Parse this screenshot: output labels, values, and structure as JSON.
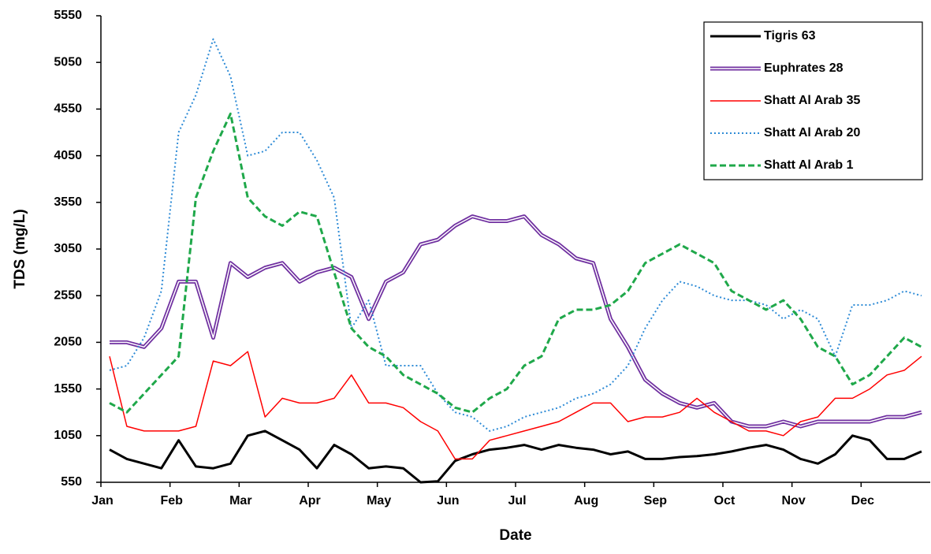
{
  "chart_data": {
    "type": "line",
    "xlabel": "Date",
    "ylabel": "TDS (mg/L)",
    "categories": [
      "Jan",
      null,
      null,
      null,
      "Feb",
      null,
      null,
      null,
      "Mar",
      null,
      null,
      null,
      "Apr",
      null,
      null,
      null,
      "May",
      null,
      null,
      null,
      "Jun",
      null,
      null,
      null,
      "Jul",
      null,
      null,
      null,
      "Aug",
      null,
      null,
      null,
      "Sep",
      null,
      null,
      null,
      "Oct",
      null,
      null,
      null,
      "Nov",
      null,
      null,
      null,
      "Dec",
      null,
      null,
      null
    ],
    "ylim": [
      550,
      5550
    ],
    "yticks": [
      550,
      1050,
      1550,
      2050,
      2550,
      3050,
      3550,
      4050,
      4550,
      5050,
      5550
    ],
    "legend": "upper right",
    "series": [
      {
        "name": "Tigris 63",
        "color": "#000000",
        "linestyle": "solid",
        "values": [
          900,
          800,
          750,
          700,
          1000,
          720,
          700,
          750,
          1050,
          1100,
          1000,
          900,
          700,
          950,
          850,
          700,
          720,
          700,
          550,
          560,
          780,
          850,
          900,
          920,
          950,
          900,
          950,
          920,
          900,
          850,
          880,
          800,
          800,
          820,
          830,
          850,
          880,
          920,
          950,
          900,
          800,
          750,
          850,
          1050,
          1000,
          800,
          800,
          880
        ]
      },
      {
        "name": "Euphrates 28",
        "color": "#7030a0",
        "linestyle": "double",
        "values": [
          2050,
          2050,
          2000,
          2200,
          2700,
          2700,
          2100,
          2900,
          2750,
          2850,
          2900,
          2700,
          2800,
          2850,
          2750,
          2300,
          2700,
          2800,
          3100,
          3150,
          3300,
          3400,
          3350,
          3350,
          3400,
          3200,
          3100,
          2950,
          2900,
          2300,
          2000,
          1650,
          1500,
          1400,
          1350,
          1400,
          1200,
          1150,
          1150,
          1200,
          1150,
          1200,
          1200,
          1200,
          1200,
          1250,
          1250,
          1300
        ]
      },
      {
        "name": "Shatt Al Arab 35",
        "color": "#ff0000",
        "linestyle": "thin",
        "values": [
          1900,
          1150,
          1100,
          1100,
          1100,
          1150,
          1850,
          1800,
          1950,
          1250,
          1450,
          1400,
          1400,
          1450,
          1700,
          1400,
          1400,
          1350,
          1200,
          1100,
          800,
          800,
          1000,
          1050,
          1100,
          1150,
          1200,
          1300,
          1400,
          1400,
          1200,
          1250,
          1250,
          1300,
          1450,
          1300,
          1200,
          1100,
          1100,
          1050,
          1200,
          1250,
          1450,
          1450,
          1550,
          1700,
          1750,
          1900
        ]
      },
      {
        "name": "Shatt Al Arab 20",
        "color": "#2e8bd6",
        "linestyle": "dotted",
        "values": [
          1750,
          1800,
          2100,
          2600,
          4300,
          4700,
          5300,
          4900,
          4050,
          4100,
          4300,
          4300,
          4000,
          3600,
          2200,
          2500,
          1800,
          1800,
          1800,
          1500,
          1300,
          1250,
          1100,
          1150,
          1250,
          1300,
          1350,
          1450,
          1500,
          1600,
          1800,
          2200,
          2500,
          2700,
          2650,
          2550,
          2500,
          2500,
          2450,
          2300,
          2400,
          2300,
          1900,
          2450,
          2450,
          2500,
          2600,
          2550
        ]
      },
      {
        "name": "Shatt Al Arab 1",
        "color": "#1fa84a",
        "linestyle": "dashed",
        "values": [
          1400,
          1300,
          1500,
          1700,
          1900,
          3600,
          4100,
          4500,
          3600,
          3400,
          3300,
          3450,
          3400,
          2800,
          2200,
          2000,
          1900,
          1700,
          1600,
          1500,
          1350,
          1300,
          1450,
          1550,
          1800,
          1900,
          2300,
          2400,
          2400,
          2450,
          2600,
          2900,
          3000,
          3100,
          3000,
          2900,
          2600,
          2500,
          2400,
          2500,
          2300,
          2000,
          1900,
          1600,
          1700,
          1900,
          2100,
          2000
        ]
      }
    ]
  }
}
